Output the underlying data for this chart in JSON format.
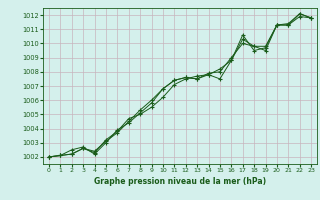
{
  "xlabel": "Graphe pression niveau de la mer (hPa)",
  "ylim": [
    1001.5,
    1012.5
  ],
  "xlim": [
    -0.5,
    23.5
  ],
  "yticks": [
    1002,
    1003,
    1004,
    1005,
    1006,
    1007,
    1008,
    1009,
    1010,
    1011,
    1012
  ],
  "xticks": [
    0,
    1,
    2,
    3,
    4,
    5,
    6,
    7,
    8,
    9,
    10,
    11,
    12,
    13,
    14,
    15,
    16,
    17,
    18,
    19,
    20,
    21,
    22,
    23
  ],
  "background_color": "#d4f0ec",
  "grid_color": "#c8b4be",
  "line_color": "#1a5c1a",
  "series": [
    [
      1002.0,
      1002.1,
      1002.2,
      1002.6,
      1002.3,
      1003.2,
      1003.8,
      1004.7,
      1005.0,
      1005.5,
      1006.2,
      1007.1,
      1007.5,
      1007.7,
      1007.8,
      1007.5,
      1008.8,
      1010.3,
      1009.8,
      1009.5,
      1011.3,
      1011.4,
      1012.1,
      1011.8
    ],
    [
      1002.0,
      1002.1,
      1002.5,
      1002.7,
      1002.2,
      1003.0,
      1003.9,
      1004.4,
      1005.1,
      1005.8,
      1006.8,
      1007.4,
      1007.6,
      1007.5,
      1007.8,
      1008.2,
      1008.8,
      1010.6,
      1009.5,
      1009.7,
      1011.3,
      1011.3,
      1011.9,
      1011.8
    ],
    [
      1002.0,
      1002.1,
      1002.2,
      1002.6,
      1002.4,
      1003.1,
      1003.7,
      1004.5,
      1005.3,
      1006.0,
      1006.8,
      1007.4,
      1007.6,
      1007.5,
      1007.9,
      1008.0,
      1009.0,
      1010.0,
      1009.8,
      1009.8,
      1011.3,
      1011.3,
      1012.1,
      1011.8
    ]
  ]
}
